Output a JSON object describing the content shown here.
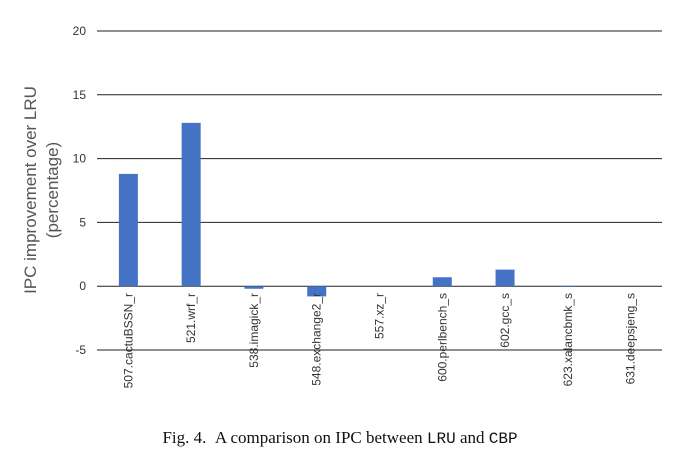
{
  "chart_data": {
    "type": "bar",
    "ylabel_lines": [
      "IPC improvement over LRU",
      "(percentage)"
    ],
    "ylim": [
      -5,
      20
    ],
    "yticks": [
      -5,
      0,
      5,
      10,
      15,
      20
    ],
    "categories": [
      "507.cactuBSSN_r",
      "521.wrf_r",
      "538.imagick_r",
      "548.exchange2_r",
      "557.xz_r",
      "600.perlbench_s",
      "602.gcc_s",
      "623.xalancbmk_s",
      "631.deepsjeng_s"
    ],
    "values": [
      8.8,
      12.8,
      -0.2,
      -0.8,
      0.0,
      0.7,
      1.3,
      -0.05,
      0.0
    ],
    "bar_color": "#4472c4",
    "grid": true
  },
  "caption": {
    "prefix": "Fig. 4.",
    "text_before": "A comparison on IPC between ",
    "lru": "LRU",
    "text_and": " and ",
    "cbp": "CBP"
  }
}
